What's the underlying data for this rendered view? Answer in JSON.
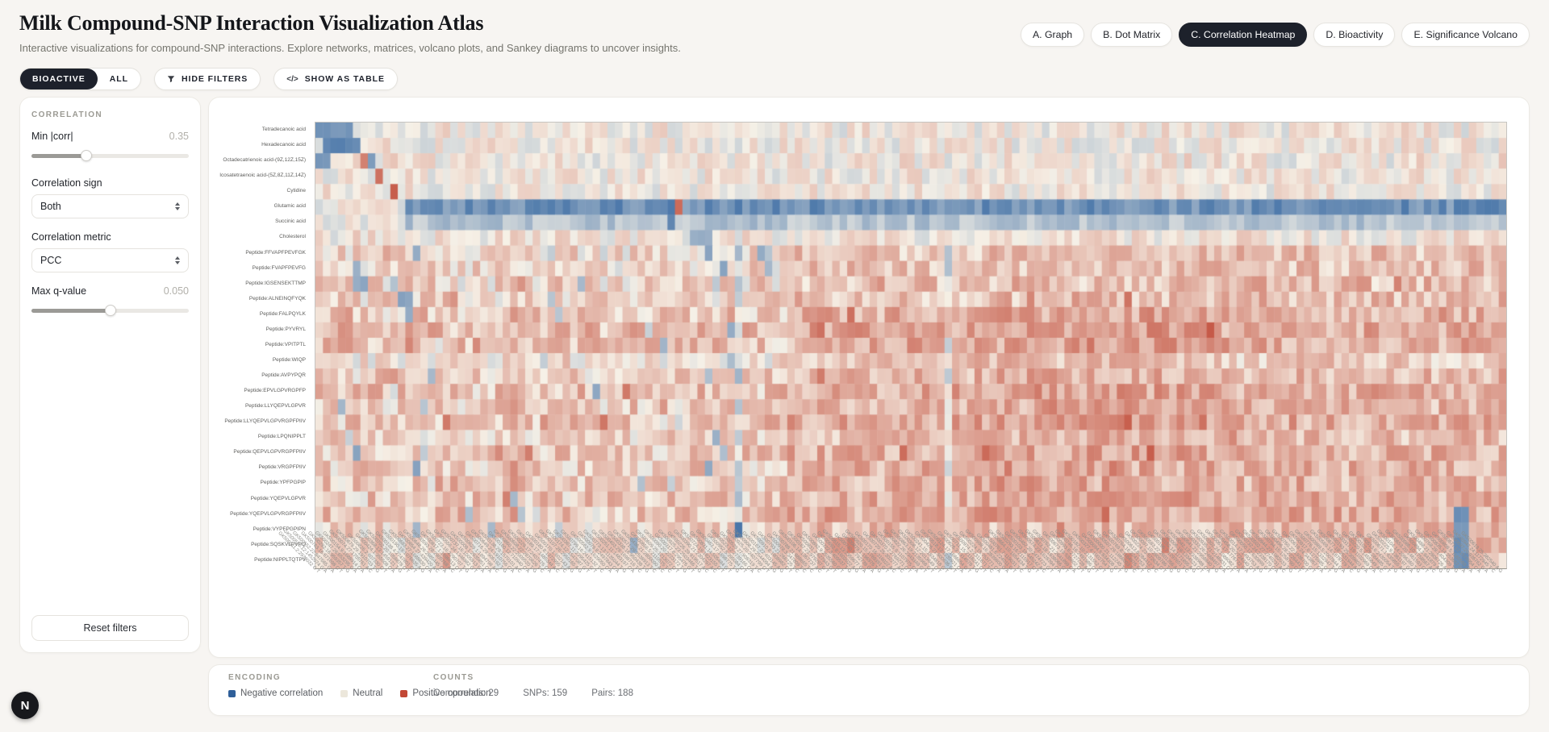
{
  "header": {
    "title": "Milk Compound-SNP Interaction Visualization Atlas",
    "subtitle": "Interactive visualizations for compound-SNP interactions. Explore networks, matrices, volcano plots, and Sankey diagrams to uncover insights.",
    "tabs": [
      {
        "label": "A. Graph",
        "active": false
      },
      {
        "label": "B. Dot Matrix",
        "active": false
      },
      {
        "label": "C. Correlation Heatmap",
        "active": true
      },
      {
        "label": "D. Bioactivity",
        "active": false
      },
      {
        "label": "E. Significance Volcano",
        "active": false
      }
    ]
  },
  "controls": {
    "bioactive_label": "BIOACTIVE",
    "all_label": "ALL",
    "active_dataset": "BIOACTIVE",
    "hide_filters_label": "HIDE FILTERS",
    "show_as_table_label": "SHOW AS TABLE",
    "code_glyph": "</>"
  },
  "filters": {
    "section": "CORRELATION",
    "min_corr": {
      "label": "Min |corr|",
      "value": "0.35",
      "pct": 35
    },
    "corr_sign": {
      "label": "Correlation sign",
      "value": "Both"
    },
    "corr_metric": {
      "label": "Correlation metric",
      "value": "PCC"
    },
    "max_q": {
      "label": "Max q-value",
      "value": "0.050",
      "pct": 50
    },
    "reset_label": "Reset filters"
  },
  "legend": {
    "section": "ENCODING",
    "items": [
      {
        "label": "Negative correlation",
        "color": "#2f5f99"
      },
      {
        "label": "Neutral",
        "color": "#ece7db"
      },
      {
        "label": "Positive correlation",
        "color": "#c24735"
      }
    ]
  },
  "counts": {
    "section": "COUNTS",
    "compounds": "Compounds: 29",
    "snps": "SNPs: 159",
    "pairs": "Pairs: 188"
  },
  "dev_badge": "N",
  "heatmap": {
    "rows": [
      {
        "name": "Tetradecanoic acid",
        "bias": 0.02,
        "amp": 0.15
      },
      {
        "name": "Hexadecanoic acid",
        "bias": 0.02,
        "amp": 0.15
      },
      {
        "name": "Octadecatrienoic acid-(9Z,12Z,15Z)",
        "bias": 0.03,
        "amp": 0.16
      },
      {
        "name": "Icosatetraenoic acid-(5Z,8Z,11Z,14Z)",
        "bias": 0.02,
        "amp": 0.14
      },
      {
        "name": "Cytidine",
        "bias": 0.02,
        "amp": 0.14
      },
      {
        "name": "Glutamic acid",
        "bias": 0.0,
        "amp": 0.12,
        "band": {
          "from": 12,
          "value": -0.52,
          "amp": 0.16
        }
      },
      {
        "name": "Succinic acid",
        "bias": 0.0,
        "amp": 0.12,
        "band": {
          "from": 12,
          "value": -0.22,
          "amp": 0.12
        }
      },
      {
        "name": "Cholesterol",
        "bias": 0.04,
        "amp": 0.15
      },
      {
        "name": "Peptide:FFVAPFPEVFGK",
        "bias": 0.1,
        "amp": 0.2
      },
      {
        "name": "Peptide:FVAPFPEVFG",
        "bias": 0.1,
        "amp": 0.2
      },
      {
        "name": "Peptide:IGSENSEKTTMP",
        "bias": 0.12,
        "amp": 0.22
      },
      {
        "name": "Peptide:ALNEINQFYQK",
        "bias": 0.12,
        "amp": 0.22
      },
      {
        "name": "Peptide:FALPQYLK",
        "bias": 0.18,
        "amp": 0.22
      },
      {
        "name": "Peptide:PYVRYL",
        "bias": 0.22,
        "amp": 0.22
      },
      {
        "name": "Peptide:VPITPTL",
        "bias": 0.2,
        "amp": 0.22
      },
      {
        "name": "Peptide:WIQP",
        "bias": 0.06,
        "amp": 0.18
      },
      {
        "name": "Peptide:AVPYPQR",
        "bias": 0.14,
        "amp": 0.2
      },
      {
        "name": "Peptide:EPVLGPVRGPFP",
        "bias": 0.2,
        "amp": 0.22
      },
      {
        "name": "Peptide:LLYQEPVLGPVR",
        "bias": 0.16,
        "amp": 0.22
      },
      {
        "name": "Peptide:LLYQEPVLGPVRGPFPIIV",
        "bias": 0.2,
        "amp": 0.22
      },
      {
        "name": "Peptide:LPQNIPPLT",
        "bias": 0.12,
        "amp": 0.2
      },
      {
        "name": "Peptide:QEPVLGPVRGPFPIIV",
        "bias": 0.18,
        "amp": 0.22
      },
      {
        "name": "Peptide:VRGPFPIIV",
        "bias": 0.16,
        "amp": 0.22
      },
      {
        "name": "Peptide:YPFPGPIP",
        "bias": 0.16,
        "amp": 0.22
      },
      {
        "name": "Peptide:YQEPVLGPVR",
        "bias": 0.18,
        "amp": 0.22
      },
      {
        "name": "Peptide:YQEPVLGPVRGPFPIIV",
        "bias": 0.2,
        "amp": 0.22
      },
      {
        "name": "Peptide:VYPFPGPIPN",
        "bias": 0.12,
        "amp": 0.2
      },
      {
        "name": "Peptide:SQSKVLPVPQ",
        "bias": 0.1,
        "amp": 0.2
      },
      {
        "name": "Peptide:NIPPLTQTPV",
        "bias": 0.08,
        "amp": 0.18
      }
    ],
    "snps": {
      "count": 159,
      "seed": 7,
      "prefix": "GK",
      "acc_start": 500000,
      "acc_range": 999,
      "chr_max": 29,
      "pos_min": 100000,
      "pos_range": 2900000,
      "allele_pairs": [
        "A G",
        "G A",
        "C T",
        "T C",
        "A C",
        "G T",
        "C A",
        "T G"
      ],
      "example_label": "GK500607.2:2789970 A G"
    },
    "colors": {
      "negative": "#3e6ea5",
      "neutral": "#f6f1e7",
      "positive": "#c65a48"
    },
    "render": {
      "seed": 42,
      "peptide_first_row": 8,
      "right_boost": {
        "from": 62,
        "add": 0.1
      },
      "mid_boost": {
        "c0": 88,
        "c1": 120,
        "r0": 12,
        "r1": 25,
        "add": 0.05
      },
      "blue_cols": [
        56,
        84
      ],
      "blue_col_delta": -0.25,
      "warm_cols": [
        26,
        27
      ],
      "warm_col_delta": 0.1,
      "scatter_blue": {
        "p": 0.05,
        "delta": -0.38,
        "maxc": 62
      },
      "scatter_warm": {
        "p": 0.03,
        "delta": 0.18
      },
      "features": [
        {
          "r0": 0,
          "r1": 0,
          "c0": 0,
          "c1": 4,
          "v": -0.5
        },
        {
          "r0": 1,
          "r1": 1,
          "c0": 1,
          "c1": 5,
          "v": -0.58
        },
        {
          "r0": 2,
          "r1": 2,
          "c0": 0,
          "c1": 1,
          "v": -0.48
        },
        {
          "r0": 2,
          "r1": 2,
          "c0": 6,
          "c1": 6,
          "v": 0.55
        },
        {
          "r0": 2,
          "r1": 2,
          "c0": 7,
          "c1": 7,
          "v": -0.5
        },
        {
          "r0": 3,
          "r1": 3,
          "c0": 8,
          "c1": 8,
          "v": 0.65
        },
        {
          "r0": 4,
          "r1": 4,
          "c0": 10,
          "c1": 10,
          "v": 0.7
        },
        {
          "r0": 5,
          "r1": 5,
          "c0": 48,
          "c1": 48,
          "v": 0.6
        },
        {
          "r0": 6,
          "r1": 6,
          "c0": 47,
          "c1": 47,
          "v": -0.55
        },
        {
          "r0": 7,
          "r1": 7,
          "c0": 50,
          "c1": 52,
          "v": -0.3
        },
        {
          "r0": 12,
          "r1": 14,
          "c0": 3,
          "c1": 4,
          "v": 0.4
        },
        {
          "r0": 25,
          "r1": 28,
          "c0": 152,
          "c1": 153,
          "v": -0.5
        },
        {
          "r0": 27,
          "r1": 27,
          "c0": 155,
          "c1": 155,
          "v": 0.45
        }
      ]
    }
  }
}
